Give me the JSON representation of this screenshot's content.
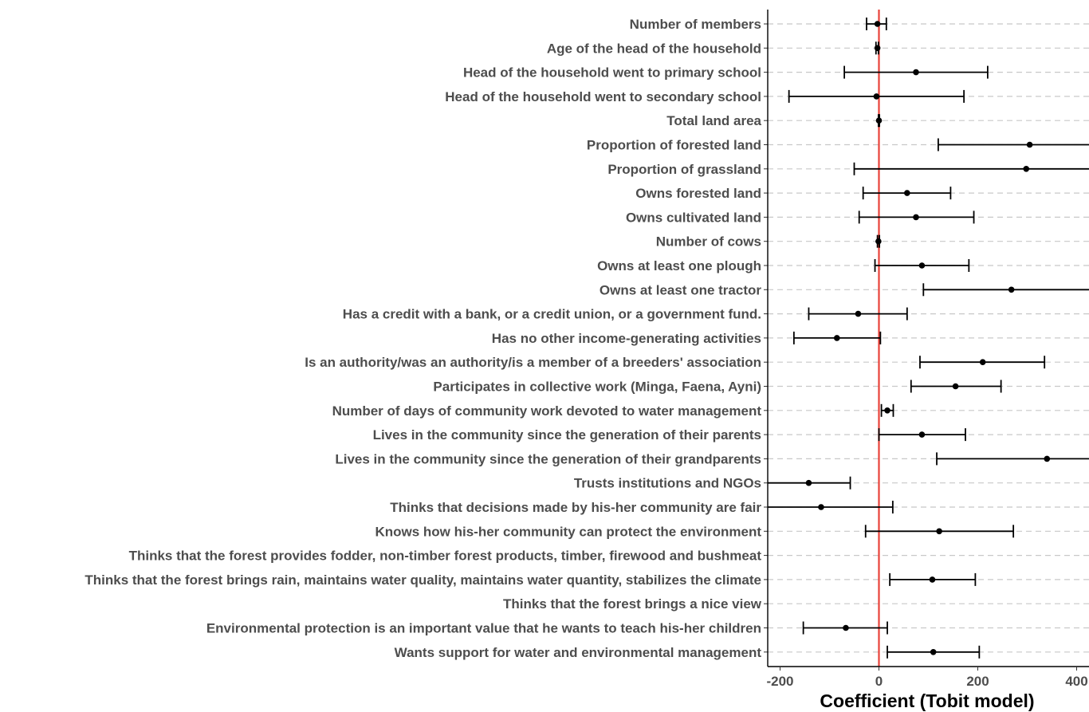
{
  "chart_data": {
    "type": "coefficient-plot",
    "xlabel": "Coefficient (Tobit model)",
    "xlim": [
      -225,
      425
    ],
    "xticks": [
      -200,
      0,
      200,
      400
    ],
    "xtick_labels": [
      "-200",
      "0",
      "200",
      "400"
    ],
    "reference_line": 0,
    "grid": "horizontal dashed",
    "colors": {
      "reference_line": "#e8423a",
      "point": "#000000",
      "grid": "#c8c8c8",
      "label": "#4d4d4d"
    },
    "rows": [
      {
        "label": "Number of members",
        "estimate": -3,
        "lower": -25,
        "upper": 15
      },
      {
        "label": "Age of the head of the household",
        "estimate": -3,
        "lower": -6,
        "upper": -1
      },
      {
        "label": "Head of the household went to primary school",
        "estimate": 75,
        "lower": -70,
        "upper": 220
      },
      {
        "label": "Head of the household went to secondary school",
        "estimate": -5,
        "lower": -182,
        "upper": 172
      },
      {
        "label": "Total land area",
        "estimate": 0,
        "lower": -1,
        "upper": 1
      },
      {
        "label": "Proportion of forested land",
        "estimate": 305,
        "lower": 120,
        "upper": 425
      },
      {
        "label": "Proportion of grassland",
        "estimate": 298,
        "lower": -50,
        "upper": 425
      },
      {
        "label": "Owns forested land",
        "estimate": 57,
        "lower": -32,
        "upper": 145
      },
      {
        "label": "Owns cultivated land",
        "estimate": 75,
        "lower": -40,
        "upper": 192
      },
      {
        "label": "Number of cows",
        "estimate": -1,
        "lower": -3,
        "upper": 1
      },
      {
        "label": "Owns at least one plough",
        "estimate": 87,
        "lower": -8,
        "upper": 182
      },
      {
        "label": "Owns at least one tractor",
        "estimate": 268,
        "lower": 90,
        "upper": 425
      },
      {
        "label": "Has a credit with a bank, or a credit union, or a government fund.",
        "estimate": -42,
        "lower": -142,
        "upper": 57
      },
      {
        "label": "Has no other income-generating activities",
        "estimate": -85,
        "lower": -172,
        "upper": 3
      },
      {
        "label": "Is an authority/was an authority/is a member of a breeders' association",
        "estimate": 210,
        "lower": 83,
        "upper": 335
      },
      {
        "label": "Participates in collective work (Minga, Faena, Ayni)",
        "estimate": 155,
        "lower": 65,
        "upper": 247
      },
      {
        "label": "Number of days of community work devoted to water management",
        "estimate": 17,
        "lower": 5,
        "upper": 29
      },
      {
        "label": "Lives in the community since the generation of their parents",
        "estimate": 87,
        "lower": 0,
        "upper": 175
      },
      {
        "label": "Lives in the community since the generation of their grandparents",
        "estimate": 340,
        "lower": 117,
        "upper": 425
      },
      {
        "label": "Trusts institutions and NGOs",
        "estimate": -142,
        "lower": -225,
        "upper": -58
      },
      {
        "label": "Thinks that decisions made by his-her community are fair",
        "estimate": -117,
        "lower": -225,
        "upper": 28
      },
      {
        "label": "Knows how his-her community can protect the environment",
        "estimate": 122,
        "lower": -27,
        "upper": 272
      },
      {
        "label": "Thinks that the forest provides fodder, non-timber forest products, timber, firewood and bushmeat",
        "estimate": null,
        "lower": null,
        "upper": null
      },
      {
        "label": "Thinks that the forest brings rain, maintains water quality, maintains water quantity, stabilizes the climate",
        "estimate": 108,
        "lower": 22,
        "upper": 195
      },
      {
        "label": "Thinks that the forest brings a nice view",
        "estimate": null,
        "lower": null,
        "upper": null
      },
      {
        "label": "Environmental protection is an important value that he wants to teach his-her children",
        "estimate": -67,
        "lower": -153,
        "upper": 17
      },
      {
        "label": "Wants support for water and environmental management",
        "estimate": 110,
        "lower": 17,
        "upper": 203
      }
    ]
  }
}
